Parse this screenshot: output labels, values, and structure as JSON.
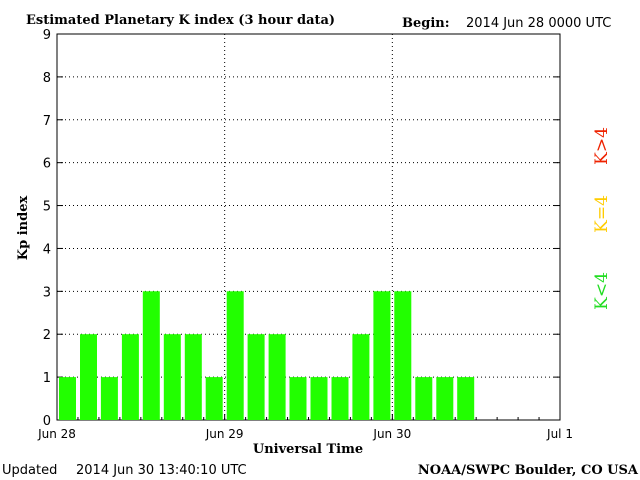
{
  "header": {
    "title": "Estimated Planetary K index (3 hour data)",
    "begin_label": "Begin:",
    "begin_value": "2014 Jun 28 0000 UTC"
  },
  "footer": {
    "updated_label": "Updated",
    "updated_value": "2014 Jun 30 13:40:10 UTC",
    "credit": "NOAA/SWPC Boulder, CO USA"
  },
  "legend": {
    "high": "K>4",
    "mid": "K=4",
    "low": "K<4"
  },
  "colors": {
    "bar_low": "#22ff00",
    "legend_low": "#22dd22",
    "legend_mid": "#ffcc00",
    "legend_high": "#ee2200",
    "grid": "#000000",
    "background": "#ffffff"
  },
  "chart_data": {
    "type": "bar",
    "title": "Estimated Planetary K index (3 hour data)",
    "xlabel": "Universal Time",
    "ylabel": "Kp index",
    "ylim": [
      0,
      9
    ],
    "yticks": [
      "0",
      "1",
      "2",
      "3",
      "4",
      "5",
      "6",
      "7",
      "8",
      "9"
    ],
    "xticks": [
      "Jun 28",
      "Jun 29",
      "Jun 30",
      "Jul 1"
    ],
    "interval_hours": 3,
    "start": "2014 Jun 28 0000 UTC",
    "values": [
      1,
      2,
      1,
      2,
      3,
      2,
      2,
      1,
      3,
      2,
      2,
      1,
      1,
      1,
      2,
      3,
      3,
      1,
      1,
      1
    ],
    "grid": "dotted",
    "legend_position": "right"
  }
}
